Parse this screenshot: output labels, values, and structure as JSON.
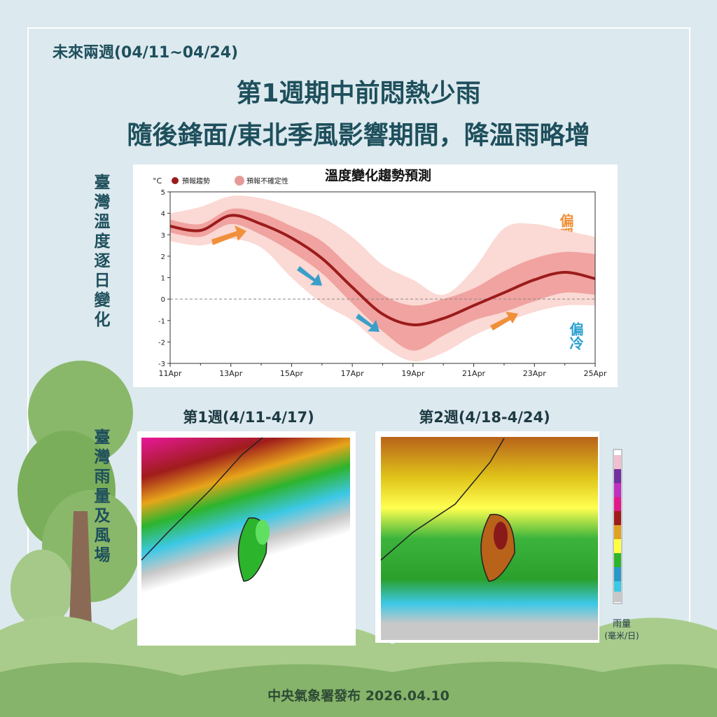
{
  "header": {
    "period": "未來兩週(04/11~04/24)",
    "title_line1": "第1週期中前悶熱少雨",
    "title_line2": "隨後鋒面/東北季風影響期間，降溫雨略增"
  },
  "side_labels": {
    "temperature": "臺灣溫度逐日變化",
    "rain": "臺灣雨量及風場"
  },
  "chart_data": {
    "type": "line",
    "title": "溫度變化趨勢預測",
    "y_unit": "°C",
    "categories": [
      "11Apr",
      null,
      "13Apr",
      null,
      "15Apr",
      null,
      "17Apr",
      null,
      "19Apr",
      null,
      "21Apr",
      null,
      "23Apr",
      null,
      "25Apr"
    ],
    "series": [
      {
        "name": "預報趨勢",
        "color": "#9b1b1b",
        "values": [
          3.4,
          3.2,
          3.9,
          3.5,
          2.85,
          1.9,
          0.55,
          -0.7,
          -1.2,
          -0.9,
          -0.3,
          0.3,
          0.9,
          1.25,
          0.95
        ]
      },
      {
        "name": "預報不確定性",
        "color": "#e59a96",
        "bands": [
          {
            "color": "#fbd9d4",
            "low": [
              2.7,
              2.5,
              2.8,
              2.4,
              1.0,
              -0.2,
              -1.0,
              -2.2,
              -2.9,
              -2.5,
              -1.7,
              -1.1,
              -0.6,
              -0.3,
              -0.3
            ],
            "high": [
              4.0,
              4.3,
              4.8,
              4.7,
              4.3,
              3.8,
              2.9,
              1.6,
              0.9,
              0.2,
              1.4,
              3.3,
              3.5,
              3.2,
              2.9
            ]
          },
          {
            "color": "#f0a3a0",
            "low": [
              3.1,
              2.9,
              3.5,
              3.0,
              2.2,
              1.2,
              -0.2,
              -1.5,
              -2.4,
              -1.7,
              -1.0,
              -0.6,
              -0.1,
              0.3,
              0.2
            ],
            "high": [
              3.7,
              3.5,
              4.2,
              4.0,
              3.4,
              2.7,
              1.4,
              0.2,
              -0.3,
              0.0,
              0.5,
              1.3,
              1.9,
              2.2,
              2.1
            ]
          }
        ]
      }
    ],
    "ylim": [
      -3,
      5
    ],
    "yticks": [
      -3,
      -2,
      -1,
      0,
      1,
      2,
      3,
      4,
      5
    ],
    "reference_line": 0,
    "annotations": {
      "warm": "偏暖",
      "cold": "偏冷"
    }
  },
  "maps": {
    "week1": "第1週(4/11-4/17)",
    "week2": "第2週(4/18-4/24)",
    "colorbar_title": "雨量",
    "colorbar_unit": "(毫米/日)"
  },
  "footer": "中央氣象署發布 2026.04.10"
}
